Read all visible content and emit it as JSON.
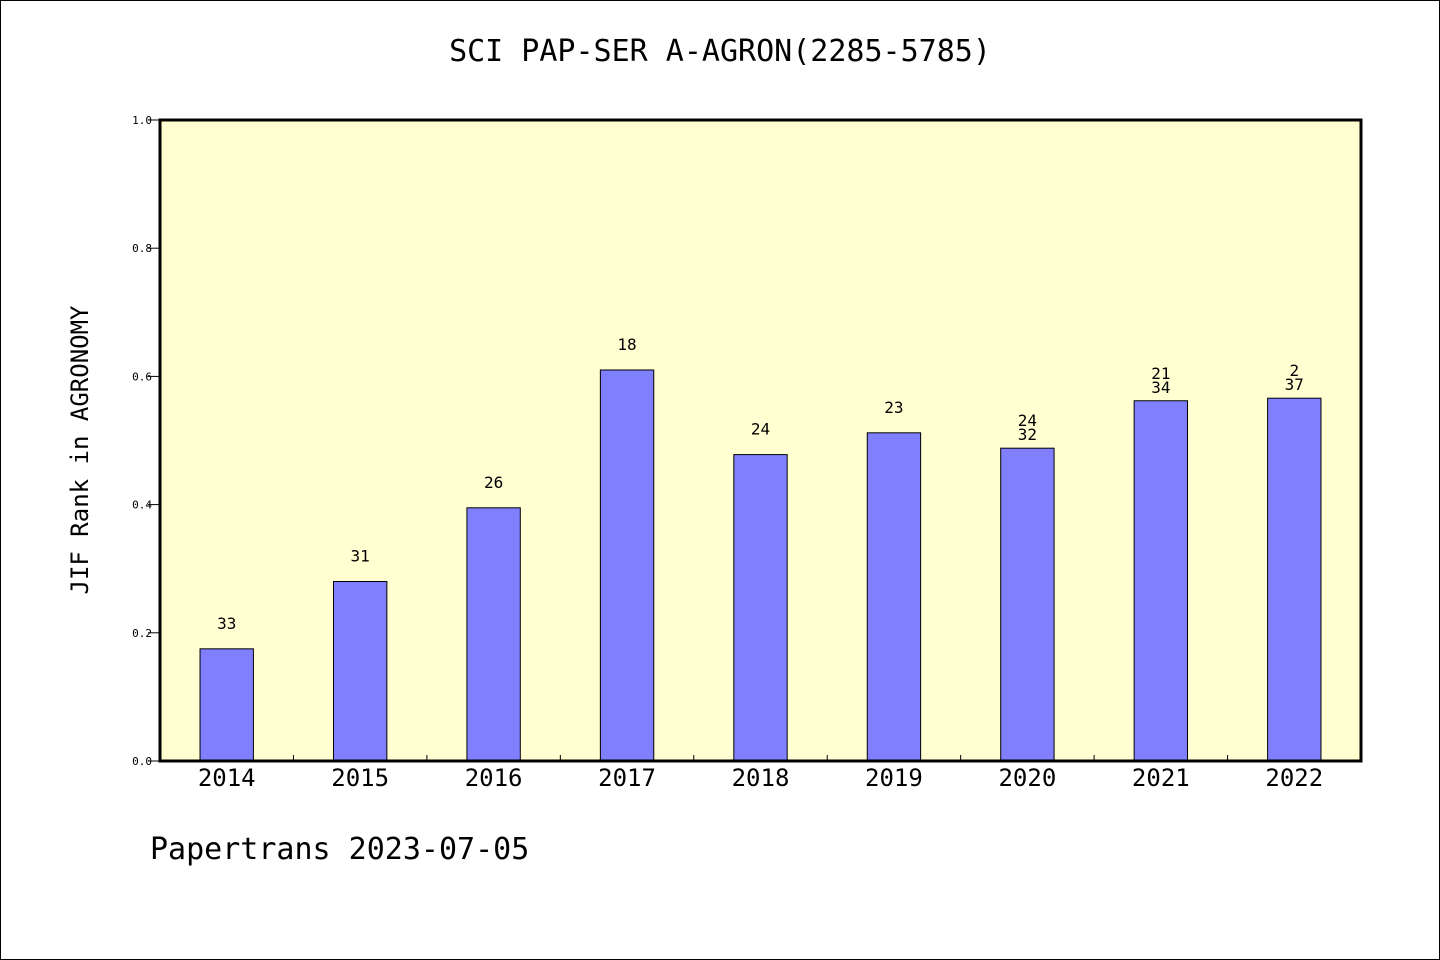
{
  "title": "SCI PAP-SER A-AGRON(2285-5785)",
  "footer": "Papertrans 2023-07-05",
  "colors": {
    "plot_background": "#ffffd2",
    "bar_fill": "#8080ff",
    "axis": "#000000"
  },
  "chart_data": {
    "type": "bar",
    "ylabel": "JIF Rank in AGRONOMY",
    "xlabel": "",
    "ylim": [
      0,
      1.0
    ],
    "yticks": [
      "0.0",
      "0.2",
      "0.4",
      "0.6",
      "0.8",
      "1.0"
    ],
    "categories": [
      "2014",
      "2015",
      "2016",
      "2017",
      "2018",
      "2019",
      "2020",
      "2021",
      "2022"
    ],
    "values": [
      0.175,
      0.28,
      0.395,
      0.61,
      0.478,
      0.512,
      0.488,
      0.562,
      0.566
    ],
    "bar_labels": [
      [
        "33"
      ],
      [
        "31"
      ],
      [
        "26"
      ],
      [
        "18"
      ],
      [
        "24"
      ],
      [
        "23"
      ],
      [
        "24",
        "32"
      ],
      [
        "21",
        "34"
      ],
      [
        "2",
        "37"
      ]
    ],
    "grid": false,
    "legend": "none"
  }
}
